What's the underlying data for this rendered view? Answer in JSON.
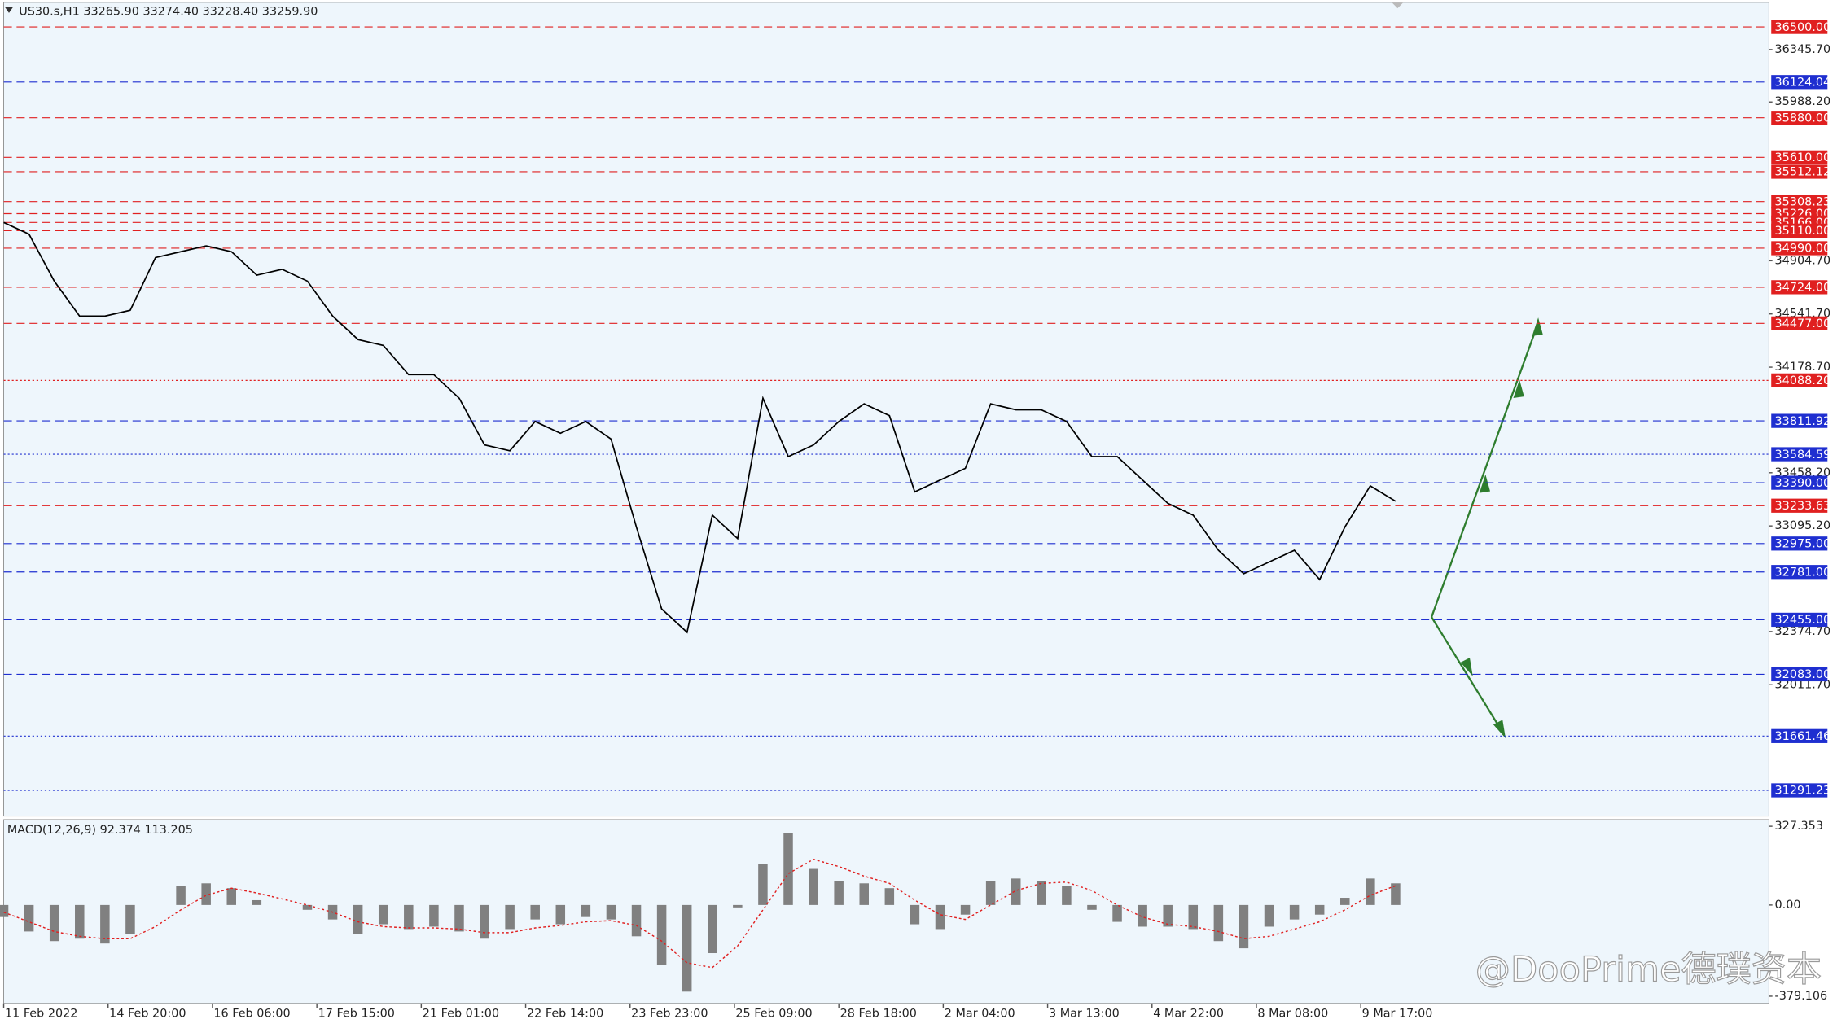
{
  "chart_data": {
    "type": "line",
    "title": "US30.s,H1  33265.90 33274.40 33228.40 33259.90",
    "color": "#000000",
    "x": [
      0,
      8,
      16,
      24,
      32,
      40,
      48,
      56,
      64,
      72,
      80,
      88,
      96,
      104,
      112,
      120,
      128,
      136,
      144,
      152,
      160,
      168,
      176,
      184,
      192,
      200,
      208,
      216,
      224,
      232,
      240,
      248,
      256,
      264,
      272,
      280,
      288,
      296,
      304,
      312,
      320,
      328,
      336,
      344,
      352,
      360,
      368,
      376,
      384,
      392,
      400,
      408,
      416,
      424,
      432,
      440
    ],
    "values": [
      35166,
      35086,
      34766,
      34527,
      34527,
      34567,
      34926,
      34966,
      35006,
      34966,
      34806,
      34846,
      34766,
      34527,
      34367,
      34327,
      34127,
      34127,
      33967,
      33648,
      33608,
      33808,
      33728,
      33808,
      33688,
      33089,
      32529,
      32370,
      33169,
      33009,
      33967,
      33568,
      33648,
      33808,
      33928,
      33848,
      33328,
      33408,
      33488,
      33928,
      33888,
      33888,
      33808,
      33568,
      33568,
      33408,
      33249,
      33169,
      32929,
      32769,
      32849,
      32929,
      32729,
      33089,
      33368,
      33264
    ],
    "xlim": [
      0,
      558
    ],
    "ylim": [
      31115.5,
      36667.8
    ],
    "xticks": [
      {
        "value": 0,
        "label": "11 Feb 2022"
      },
      {
        "value": 33,
        "label": "14 Feb 20:00"
      },
      {
        "value": 66,
        "label": "16 Feb 06:00"
      },
      {
        "value": 99,
        "label": "17 Feb 15:00"
      },
      {
        "value": 132,
        "label": "21 Feb 01:00"
      },
      {
        "value": 165,
        "label": "22 Feb 14:00"
      },
      {
        "value": 198,
        "label": "23 Feb 23:00"
      },
      {
        "value": 231,
        "label": "25 Feb 09:00"
      },
      {
        "value": 264,
        "label": "28 Feb 18:00"
      },
      {
        "value": 297,
        "label": "2 Mar 04:00"
      },
      {
        "value": 330,
        "label": "3 Mar 13:00"
      },
      {
        "value": 363,
        "label": "4 Mar 22:00"
      },
      {
        "value": 396,
        "label": "8 Mar 08:00"
      },
      {
        "value": 429,
        "label": "9 Mar 17:00"
      }
    ],
    "yticks": [
      {
        "value": 36345.7,
        "label": "36345.70"
      },
      {
        "value": 35988.2,
        "label": "35988.20"
      },
      {
        "value": 34904.7,
        "label": "34904.70"
      },
      {
        "value": 34541.7,
        "label": "34541.70"
      },
      {
        "value": 34178.7,
        "label": "34178.70"
      },
      {
        "value": 33458.2,
        "label": "33458.20"
      },
      {
        "value": 33095.2,
        "label": "33095.20"
      },
      {
        "value": 32374.7,
        "label": "32374.70"
      },
      {
        "value": 32011.7,
        "label": "32011.70"
      }
    ],
    "levels": [
      {
        "value": 36500,
        "label": "36500.00",
        "color": "#e02020",
        "style": "dashed"
      },
      {
        "value": 36124.04,
        "label": "36124.04",
        "color": "#1f2fd0",
        "style": "dashed"
      },
      {
        "value": 35880,
        "label": "35880.00",
        "color": "#e02020",
        "style": "dashed"
      },
      {
        "value": 35610,
        "label": "35610.00",
        "color": "#e02020",
        "style": "dashed"
      },
      {
        "value": 35512.12,
        "label": "35512.12",
        "color": "#e02020",
        "style": "dashed"
      },
      {
        "value": 35308.23,
        "label": "35308.23",
        "color": "#e02020",
        "style": "dashed"
      },
      {
        "value": 35226,
        "label": "35226.00",
        "color": "#e02020",
        "style": "dashed"
      },
      {
        "value": 35166,
        "label": "35166.00",
        "color": "#e02020",
        "style": "dashed"
      },
      {
        "value": 35110,
        "label": "35110.00",
        "color": "#e02020",
        "style": "dashed"
      },
      {
        "value": 34990,
        "label": "34990.00",
        "color": "#e02020",
        "style": "dashed"
      },
      {
        "value": 34724,
        "label": "34724.00",
        "color": "#e02020",
        "style": "dashed"
      },
      {
        "value": 34477,
        "label": "34477.00",
        "color": "#e02020",
        "style": "dashed"
      },
      {
        "value": 34088.2,
        "label": "34088.20",
        "color": "#e02020",
        "style": "dotted"
      },
      {
        "value": 33811.92,
        "label": "33811.92",
        "color": "#1f2fd0",
        "style": "dashed"
      },
      {
        "value": 33584.59,
        "label": "33584.59",
        "color": "#1f2fd0",
        "style": "dotted"
      },
      {
        "value": 33390,
        "label": "33390.00",
        "color": "#1f2fd0",
        "style": "dashed"
      },
      {
        "value": 33233.63,
        "label": "33233.63",
        "color": "#e02020",
        "style": "dashed"
      },
      {
        "value": 32975,
        "label": "32975.00",
        "color": "#1f2fd0",
        "style": "dashed"
      },
      {
        "value": 32781,
        "label": "32781.00",
        "color": "#1f2fd0",
        "style": "dashed"
      },
      {
        "value": 32455,
        "label": "32455.00",
        "color": "#1f2fd0",
        "style": "dashed"
      },
      {
        "value": 32083,
        "label": "32083.00",
        "color": "#1f2fd0",
        "style": "dashed"
      },
      {
        "value": 31661.46,
        "label": "31661.46",
        "color": "#1f2fd0",
        "style": "dotted"
      },
      {
        "value": 31291.23,
        "label": "31291.23",
        "color": "#1f2fd0",
        "style": "dotted"
      }
    ],
    "macd": {
      "label": "MACD(12,26,9) 92.374 113.205",
      "color": "#808080",
      "signal_color": "#e02020",
      "ylim": [
        -409,
        355
      ],
      "yticks": [
        327.353,
        {
          "value": 0,
          "label": "0.00"
        },
        -379.106
      ],
      "values": [
        -50,
        -110,
        -150,
        -140,
        -160,
        -120,
        0,
        80,
        90,
        70,
        20,
        0,
        -20,
        -60,
        -120,
        -80,
        -100,
        -90,
        -110,
        -140,
        -100,
        -60,
        -80,
        -50,
        -60,
        -130,
        -250,
        -360,
        -200,
        -10,
        170,
        300,
        150,
        100,
        90,
        70,
        -80,
        -100,
        -40,
        100,
        110,
        100,
        80,
        -20,
        -70,
        -90,
        -90,
        -100,
        -150,
        -180,
        -90,
        -60,
        -40,
        30,
        110,
        90
      ],
      "signal": [
        -30,
        -70,
        -110,
        -130,
        -140,
        -140,
        -90,
        -20,
        40,
        70,
        50,
        25,
        0,
        -30,
        -70,
        -90,
        -95,
        -95,
        -100,
        -115,
        -115,
        -95,
        -85,
        -70,
        -65,
        -85,
        -150,
        -240,
        -260,
        -170,
        -20,
        130,
        190,
        160,
        120,
        90,
        20,
        -40,
        -60,
        0,
        60,
        90,
        95,
        60,
        0,
        -50,
        -80,
        -90,
        -110,
        -140,
        -130,
        -100,
        -70,
        -20,
        40,
        80
      ]
    },
    "watermark": "@DooPrime德璞资本"
  }
}
